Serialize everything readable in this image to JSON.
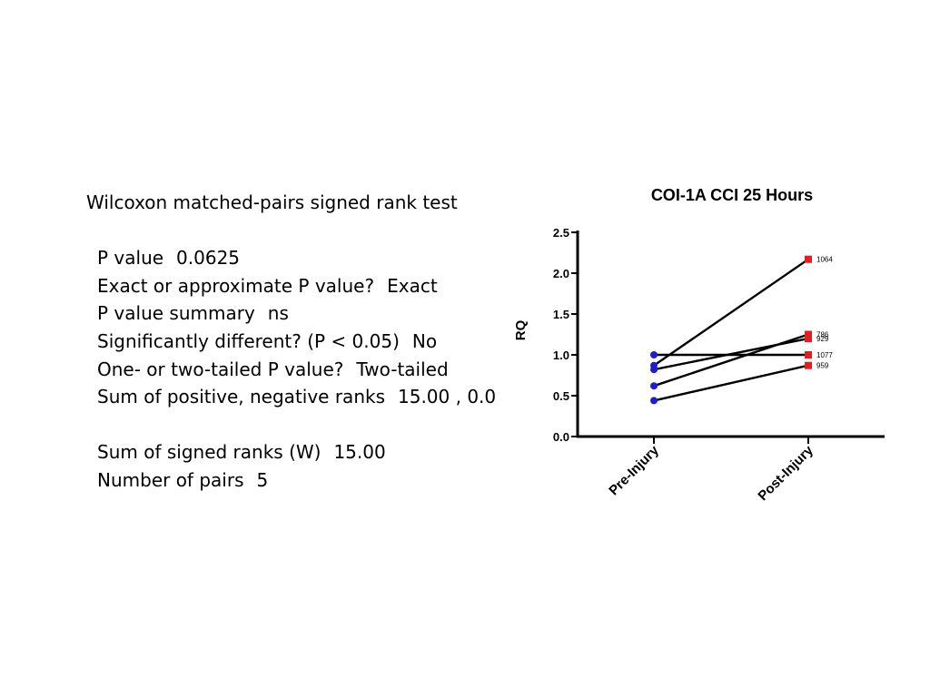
{
  "stats": {
    "title": "Wilcoxon matched-pairs signed rank test",
    "rows_a": [
      {
        "label": "P value",
        "value": "0.0625"
      },
      {
        "label": "Exact or approximate P value?",
        "value": "Exact"
      },
      {
        "label": "P value summary",
        "value": "ns"
      },
      {
        "label": "Significantly different? (P < 0.05)",
        "value": "No"
      },
      {
        "label": "One- or two-tailed P value?",
        "value": "Two-tailed"
      },
      {
        "label": "Sum of positive, negative ranks",
        "value": "15.00 , 0.0"
      }
    ],
    "rows_b": [
      {
        "label": "Sum of signed ranks (W)",
        "value": "15.00"
      },
      {
        "label": "Number of pairs",
        "value": "5"
      }
    ]
  },
  "chart_data": {
    "type": "line",
    "title": "COI-1A CCI 25 Hours",
    "ylabel": "RQ",
    "xlabel": "",
    "categories": [
      "Pre-Injury",
      "Post-Injury"
    ],
    "ylim": [
      0,
      2.5
    ],
    "yticks": [
      "0.0",
      "0.5",
      "1.0",
      "1.5",
      "2.0",
      "2.5"
    ],
    "grid": false,
    "pre_color": "#1f1fc8",
    "post_color": "#e02020",
    "series": [
      {
        "name": "1064",
        "values": [
          0.87,
          2.17
        ]
      },
      {
        "name": "786",
        "values": [
          0.62,
          1.25
        ]
      },
      {
        "name": "929",
        "values": [
          0.82,
          1.2
        ]
      },
      {
        "name": "1077",
        "values": [
          1.0,
          1.0
        ]
      },
      {
        "name": "959",
        "values": [
          0.44,
          0.87
        ]
      }
    ]
  }
}
